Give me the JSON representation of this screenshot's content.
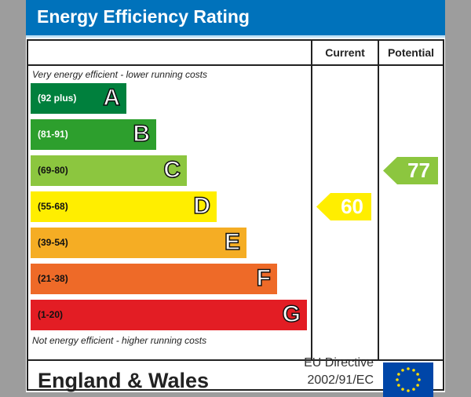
{
  "header": {
    "title": "Energy Efficiency Rating"
  },
  "columns": {
    "current": "Current",
    "potential": "Potential"
  },
  "notes": {
    "top": "Very energy efficient - lower running costs",
    "bottom": "Not energy efficient - higher running costs"
  },
  "footer": {
    "region": "England & Wales",
    "directive_line1": "EU Directive",
    "directive_line2": "2002/91/EC",
    "flag_icon": "eu-flag-icon"
  },
  "chart_data": {
    "type": "bar",
    "bands": [
      {
        "range": "(92 plus)",
        "letter": "A",
        "color": "#00803d"
      },
      {
        "range": "(81-91)",
        "letter": "B",
        "color": "#2d9f2d"
      },
      {
        "range": "(69-80)",
        "letter": "C",
        "color": "#8cc63f"
      },
      {
        "range": "(55-68)",
        "letter": "D",
        "color": "#ffee00"
      },
      {
        "range": "(39-54)",
        "letter": "E",
        "color": "#f5ad24"
      },
      {
        "range": "(21-38)",
        "letter": "F",
        "color": "#ee6a28"
      },
      {
        "range": "(1-20)",
        "letter": "G",
        "color": "#e31d24"
      }
    ],
    "current": {
      "value": 60,
      "band": "D",
      "color": "#ffee00"
    },
    "potential": {
      "value": 77,
      "band": "C",
      "color": "#8cc63f"
    }
  }
}
